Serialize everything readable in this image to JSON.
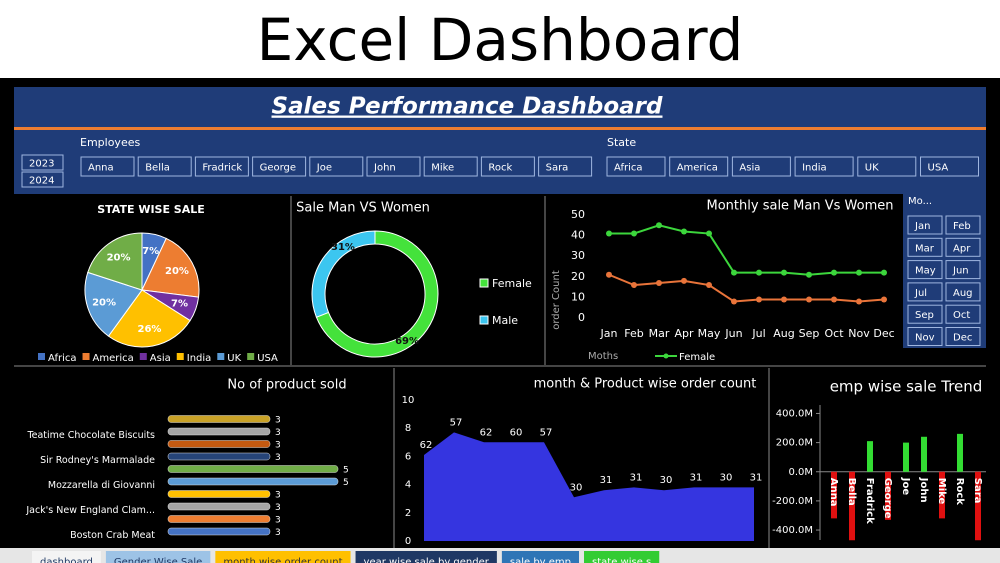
{
  "header": {
    "title": "Excel Dashboard"
  },
  "dashboard": {
    "title": "Sales Performance Dashboard"
  },
  "slicers": {
    "years": [
      "2023",
      "2024"
    ],
    "employees": {
      "title": "Employees",
      "items": [
        "Anna",
        "Bella",
        "Fradrick",
        "George",
        "Joe",
        "John",
        "Mike",
        "Rock",
        "Sara"
      ]
    },
    "state": {
      "title": "State",
      "items": [
        "Africa",
        "America",
        "Asia",
        "India",
        "UK",
        "USA"
      ]
    },
    "month": {
      "title": "Mo...",
      "items": [
        "Jan",
        "Feb",
        "Mar",
        "Apr",
        "May",
        "Jun",
        "Jul",
        "Aug",
        "Sep",
        "Oct",
        "Nov",
        "Dec"
      ]
    }
  },
  "chart_data": [
    {
      "type": "pie",
      "title": "STATE WISE SALE",
      "categories": [
        "Africa",
        "America",
        "Asia",
        "India",
        "UK",
        "USA"
      ],
      "values": [
        7,
        20,
        7,
        26,
        20,
        20
      ],
      "value_labels": [
        "7%",
        "20%",
        "7%",
        "26%",
        "20%",
        "20%"
      ],
      "colors": [
        "#4472c4",
        "#ed7d31",
        "#7030a0",
        "#ffc000",
        "#5b9bd5",
        "#70ad47"
      ],
      "legend": "bottom"
    },
    {
      "type": "donut",
      "title": "Sale Man VS Women",
      "categories": [
        "Female",
        "Male"
      ],
      "values": [
        69,
        31
      ],
      "value_labels": [
        "69%",
        "31%"
      ],
      "colors": [
        "#44e23b",
        "#3cc6f0"
      ],
      "legend": "right"
    },
    {
      "type": "line",
      "title": "Monthly sale Man Vs Women",
      "x_label": "Moths",
      "y_label": "order Count",
      "categories": [
        "Jan",
        "Feb",
        "Mar",
        "Apr",
        "May",
        "Jun",
        "Jul",
        "Aug",
        "Sep",
        "Oct",
        "Nov",
        "Dec"
      ],
      "series": [
        {
          "name": "Female",
          "color": "#3cd63c",
          "values": [
            41,
            41,
            45,
            42,
            41,
            22,
            22,
            22,
            21,
            22,
            22,
            22
          ]
        },
        {
          "color": "#e9743a",
          "values": [
            21,
            16,
            17,
            18,
            16,
            8,
            9,
            9,
            9,
            9,
            8,
            9
          ]
        }
      ],
      "ylim": [
        0,
        50
      ],
      "yticks": [
        0,
        10,
        20,
        30,
        40,
        50
      ],
      "legend": "bottom"
    },
    {
      "type": "bar",
      "orientation": "horizontal",
      "title": "No of product sold",
      "categories": [
        null,
        "Teatime Chocolate Biscuits",
        null,
        "Sir Rodney's Marmalade",
        null,
        "Mozzarella di Giovanni",
        null,
        "Jack's New England Clam...",
        null,
        "Boston Crab Meat"
      ],
      "values": [
        3,
        3,
        3,
        3,
        5,
        5,
        3,
        3,
        3,
        3
      ],
      "colors": [
        "#c9a227",
        "#a5a5a5",
        "#c55a11",
        "#264478",
        "#70ad47",
        "#5b9bd5",
        "#ffc000",
        "#a5a5a5",
        "#ed7d31",
        "#4472c4"
      ],
      "xlim": [
        0,
        6
      ]
    },
    {
      "type": "area",
      "title": "month & Product wise order count",
      "values": [
        6.1,
        7.7,
        7.0,
        7.0,
        7.0,
        3.1,
        3.6,
        3.8,
        3.6,
        3.8,
        3.8,
        3.8
      ],
      "point_labels": [
        62,
        57,
        62,
        60,
        57,
        30,
        31,
        31,
        30,
        31,
        30,
        31
      ],
      "color": "#3535e0",
      "ylim": [
        0,
        10
      ],
      "yticks": [
        0,
        2,
        4,
        6,
        8,
        10
      ]
    },
    {
      "type": "column",
      "title": "emp wise sale Trend",
      "categories": [
        "Anna",
        "Bella",
        "Fradrick",
        "George",
        "Joe",
        "John",
        "Mike",
        "Rock",
        "Sara"
      ],
      "values": [
        -320000000,
        -470000000,
        210000000,
        -330000000,
        200000000,
        240000000,
        -320000000,
        260000000,
        -470000000
      ],
      "colors": [
        "#e01010",
        "#e01010",
        "#33dd33",
        "#e01010",
        "#33dd33",
        "#33dd33",
        "#e01010",
        "#33dd33",
        "#e01010"
      ],
      "ylim": [
        -480000000,
        480000000
      ],
      "yticks": [
        {
          "value": -400000000,
          "label": "-400.0M"
        },
        {
          "value": -200000000,
          "label": "-200.0M"
        },
        {
          "value": 0,
          "label": "0.0M"
        },
        {
          "value": 200000000,
          "label": "200.0M"
        },
        {
          "value": 400000000,
          "label": "400.0M"
        }
      ]
    }
  ],
  "sheet_tabs": [
    "dashboard",
    "Gender Wise Sale",
    "month wise order count",
    "year wise sale by gender",
    "sale by emp",
    "state wise s"
  ]
}
